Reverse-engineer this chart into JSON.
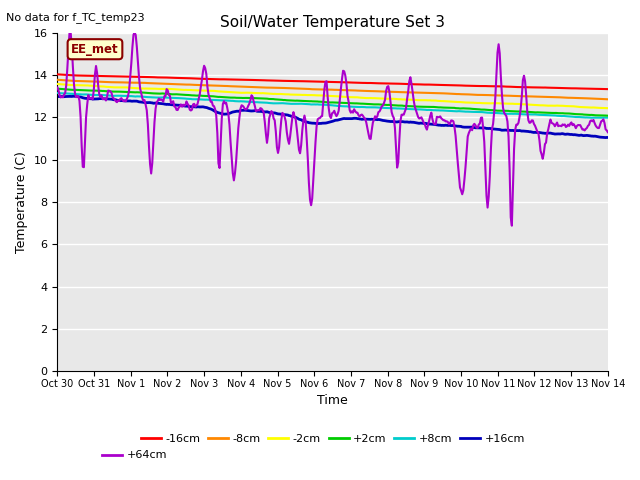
{
  "title": "Soil/Water Temperature Set 3",
  "xlabel": "Time",
  "ylabel": "Temperature (C)",
  "top_note": "No data for f_TC_temp23",
  "legend_box_label": "EE_met",
  "ylim": [
    0,
    16
  ],
  "yticks": [
    0,
    2,
    4,
    6,
    8,
    10,
    12,
    14,
    16
  ],
  "series_colors": {
    "-16cm": "#ff0000",
    "-8cm": "#ff8800",
    "-2cm": "#ffff00",
    "+2cm": "#00cc00",
    "+8cm": "#00cccc",
    "+16cm": "#0000bb",
    "+64cm": "#aa00cc"
  },
  "bg_color": "#e8e8e8",
  "x_tick_labels": [
    "Oct 30",
    "Oct 31",
    "Nov 1",
    "Nov 2",
    "Nov 3",
    "Nov 4",
    "Nov 5",
    "Nov 6",
    "Nov 7",
    "Nov 8",
    "Nov 9",
    "Nov 10",
    "Nov 11",
    "Nov 12",
    "Nov 13",
    "Nov 14"
  ],
  "n_points": 500
}
